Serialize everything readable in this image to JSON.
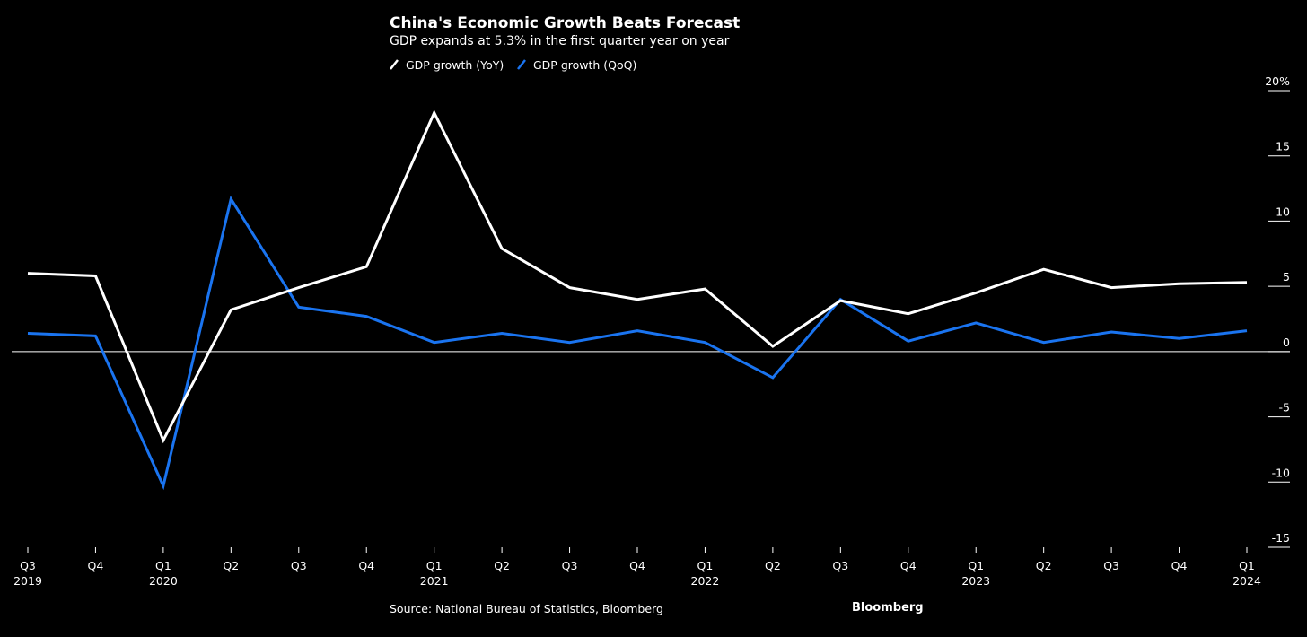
{
  "chart_data": {
    "type": "line",
    "title": "China's Economic Growth Beats Forecast",
    "subtitle": "GDP expands at 5.3% in the first quarter year on year",
    "source": "Source: National Bureau of Statistics, Bloomberg",
    "brand": "Bloomberg",
    "categories": [
      {
        "q": "Q3",
        "year": "2019"
      },
      {
        "q": "Q4",
        "year": ""
      },
      {
        "q": "Q1",
        "year": "2020"
      },
      {
        "q": "Q2",
        "year": ""
      },
      {
        "q": "Q3",
        "year": ""
      },
      {
        "q": "Q4",
        "year": ""
      },
      {
        "q": "Q1",
        "year": "2021"
      },
      {
        "q": "Q2",
        "year": ""
      },
      {
        "q": "Q3",
        "year": ""
      },
      {
        "q": "Q4",
        "year": ""
      },
      {
        "q": "Q1",
        "year": "2022"
      },
      {
        "q": "Q2",
        "year": ""
      },
      {
        "q": "Q3",
        "year": ""
      },
      {
        "q": "Q4",
        "year": ""
      },
      {
        "q": "Q1",
        "year": "2023"
      },
      {
        "q": "Q2",
        "year": ""
      },
      {
        "q": "Q3",
        "year": ""
      },
      {
        "q": "Q4",
        "year": ""
      },
      {
        "q": "Q1",
        "year": "2024"
      }
    ],
    "series": [
      {
        "name": "GDP growth (YoY)",
        "color": "#ffffff",
        "values": [
          6.0,
          5.8,
          -6.8,
          3.2,
          4.9,
          6.5,
          18.3,
          7.9,
          4.9,
          4.0,
          4.8,
          0.4,
          3.9,
          2.9,
          4.5,
          6.3,
          4.9,
          5.2,
          5.3
        ]
      },
      {
        "name": "GDP growth (QoQ)",
        "color": "#1a74f0",
        "values": [
          1.4,
          1.2,
          -10.3,
          11.7,
          3.4,
          2.7,
          0.7,
          1.4,
          0.7,
          1.6,
          0.7,
          -2.0,
          4.0,
          0.8,
          2.2,
          0.7,
          1.5,
          1.0,
          1.6
        ]
      }
    ],
    "y_ticks": [
      {
        "value": 20,
        "label": "20%"
      },
      {
        "value": 15,
        "label": "15"
      },
      {
        "value": 10,
        "label": "10"
      },
      {
        "value": 5,
        "label": "5"
      },
      {
        "value": 0,
        "label": "0"
      },
      {
        "value": -5,
        "label": "-5"
      },
      {
        "value": -10,
        "label": "-10"
      },
      {
        "value": -15,
        "label": "-15"
      }
    ],
    "ylim": [
      -15,
      20
    ],
    "xlabel": "",
    "ylabel": "",
    "legend_position": "top-center"
  }
}
